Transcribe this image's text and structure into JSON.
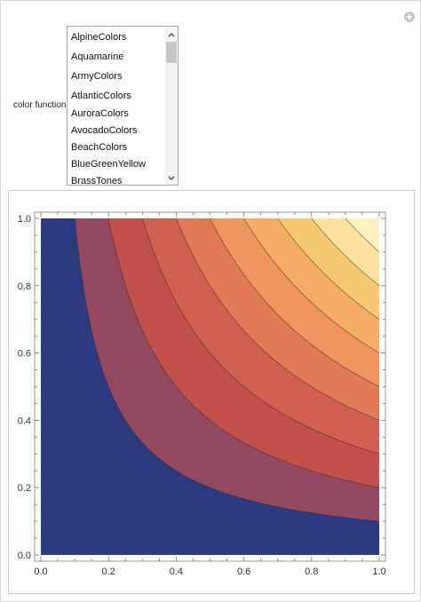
{
  "panel": {
    "add_icon": "plus-circle-icon"
  },
  "control": {
    "label": "color function",
    "options": [
      "AlpineColors",
      "Aquamarine",
      "ArmyColors",
      "AtlanticColors",
      "AuroraColors",
      "AvocadoColors",
      "BeachColors",
      "BlueGreenYellow",
      "BrassTones"
    ],
    "scroll_up_icon": "chevron-up-icon",
    "scroll_down_icon": "chevron-down-icon"
  },
  "chart_data": {
    "type": "contour",
    "function": "x*y",
    "title": "",
    "xlabel": "",
    "ylabel": "",
    "xlim": [
      0,
      1
    ],
    "ylim": [
      0,
      1
    ],
    "x_ticks": [
      "0.0",
      "0.2",
      "0.4",
      "0.6",
      "0.8",
      "1.0"
    ],
    "y_ticks": [
      "0.0",
      "0.2",
      "0.4",
      "0.6",
      "0.8",
      "1.0"
    ],
    "contour_levels": [
      0.1,
      0.2,
      0.3,
      0.4,
      0.5,
      0.6,
      0.7,
      0.8,
      0.9
    ],
    "band_colors": [
      "#2e3a80",
      "#944860",
      "#c2504b",
      "#d0604f",
      "#e07a55",
      "#ee9560",
      "#f5ad66",
      "#f8c870",
      "#fce29e",
      "#fff0c0"
    ],
    "grid": false
  }
}
